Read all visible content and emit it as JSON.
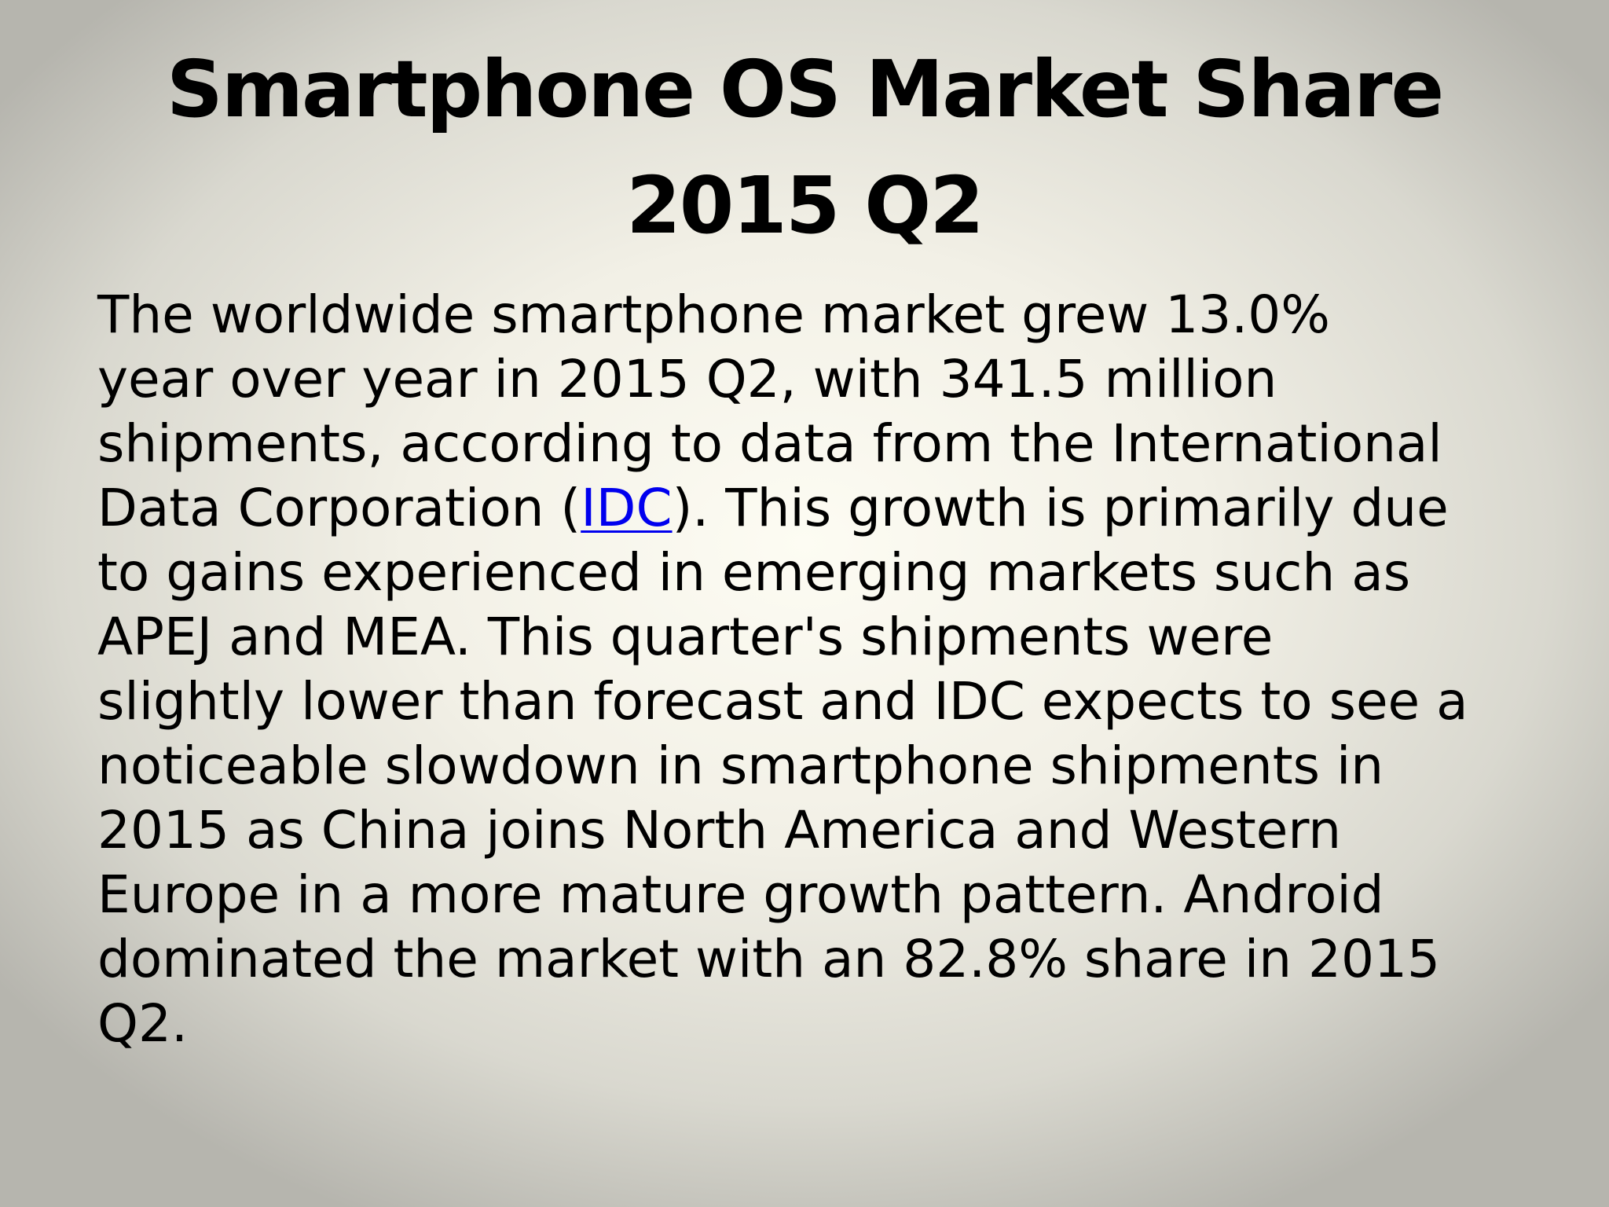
{
  "slide": {
    "title_line1": "Smartphone OS Market Share",
    "title_line2": "2015 Q2",
    "body_lines": [
      "The worldwide smartphone market grew 13.0%",
      "year over year in 2015 Q2, with 341.5 million",
      "shipments, according to data from the International"
    ],
    "line4_before": "Data Corporation (",
    "line4_link": "IDC",
    "line4_after": "). This growth is primarily due",
    "body_lines_rest": [
      "to gains experienced in emerging markets such as",
      "APEJ and MEA. This quarter's shipments were",
      "slightly lower than forecast and IDC expects to see a",
      "noticeable slowdown in smartphone shipments in",
      "2015 as China joins North America and Western",
      "Europe in a more mature growth pattern. Android",
      "dominated the market with an 82.8% share in 2015",
      "Q2."
    ],
    "link_color": "#0000ee"
  }
}
